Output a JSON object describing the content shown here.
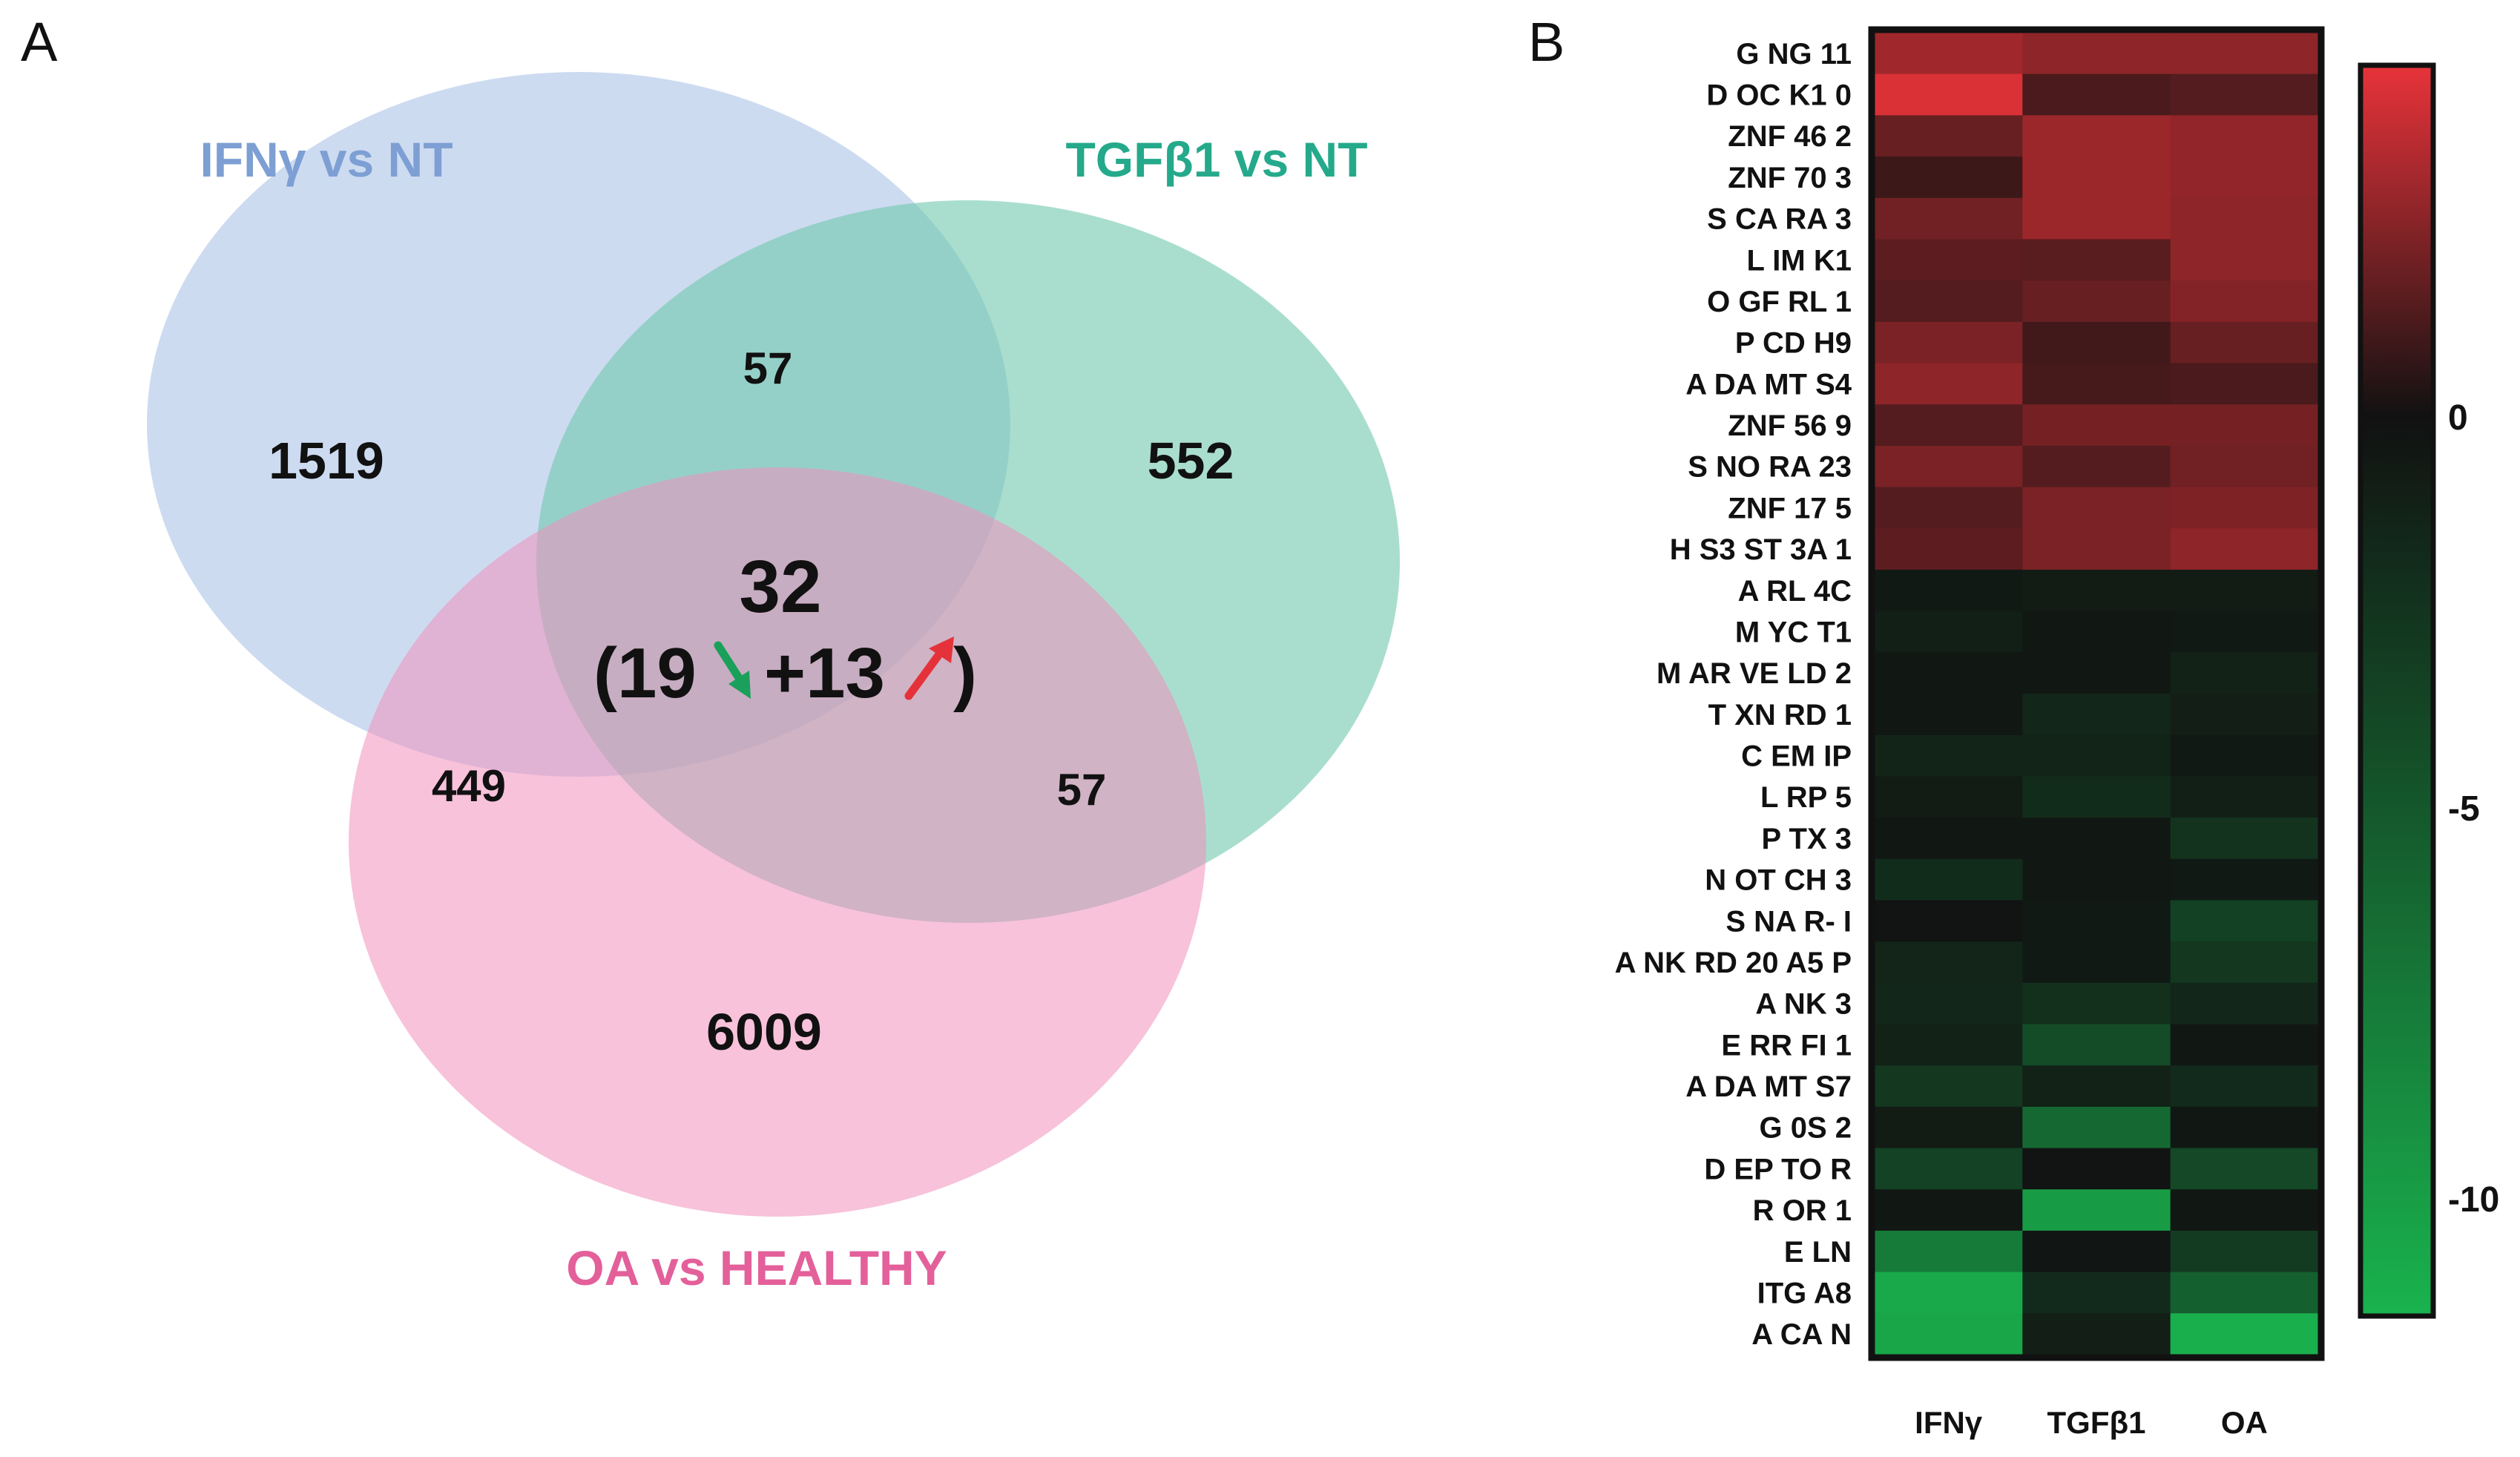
{
  "panels": {
    "a": "A",
    "b": "B"
  },
  "venn": {
    "sets": [
      {
        "name": "IFNγ vs NT",
        "color": "#7d9fd3",
        "fill": "#aec5e8"
      },
      {
        "name": "TGFβ1 vs NT",
        "color": "#25a98b",
        "fill": "#6fc8ad"
      },
      {
        "name": "OA vs HEALTHY",
        "color": "#e3609a",
        "fill": "#f08fbb"
      }
    ],
    "counts": {
      "ifn_only": "1519",
      "tgf_only": "552",
      "oa_only": "6009",
      "ifn_tgf": "57",
      "ifn_oa": "449",
      "tgf_oa": "57",
      "all": "32"
    },
    "breakdown": {
      "open": "(19",
      "plus": "+13",
      "close": ")"
    },
    "arrow_colors": {
      "down": "#1aa05a",
      "up": "#e5323a"
    }
  },
  "chart_data": {
    "type": "heatmap",
    "title": "",
    "columns": [
      "IFNγ",
      "TGFβ1",
      "OA"
    ],
    "rows": [
      "G NG 11",
      "D OC K1 0",
      "ZNF 46 2",
      "ZNF 70 3",
      "S CA RA 3",
      "L IM K1",
      "O GF RL 1",
      "P CD H9",
      "A DA MT S4",
      "ZNF 56 9",
      "S NO RA 23",
      "ZNF 17 5",
      "H S3 ST 3A 1",
      "A RL 4C",
      "M YC T1",
      "M AR VE LD 2",
      "T XN RD 1",
      "C EM IP",
      "L RP 5",
      "P TX 3",
      "N OT CH 3",
      "S NA R- I",
      "A NK RD 20 A5 P",
      "A NK 3",
      "E RR FI 1",
      "A DA MT S7",
      "G 0S 2",
      "D EP TO R",
      "R OR 1",
      "E LN",
      "ITG A8",
      "A CA N"
    ],
    "values": [
      [
        3.0,
        2.6,
        2.6
      ],
      [
        4.2,
        1.2,
        1.4
      ],
      [
        1.8,
        2.9,
        2.7
      ],
      [
        0.9,
        2.9,
        2.7
      ],
      [
        2.0,
        2.9,
        2.6
      ],
      [
        1.6,
        1.5,
        2.6
      ],
      [
        1.4,
        1.8,
        2.4
      ],
      [
        2.2,
        1.0,
        1.8
      ],
      [
        2.6,
        1.1,
        1.2
      ],
      [
        1.4,
        2.1,
        2.1
      ],
      [
        2.2,
        1.4,
        2.0
      ],
      [
        1.4,
        2.2,
        2.3
      ],
      [
        1.6,
        2.2,
        2.6
      ],
      [
        -0.6,
        -0.8,
        -0.8
      ],
      [
        -1.0,
        -0.5,
        -0.6
      ],
      [
        -0.5,
        -0.5,
        -1.2
      ],
      [
        -0.4,
        -1.5,
        -0.9
      ],
      [
        -1.3,
        -1.3,
        -0.6
      ],
      [
        -0.8,
        -1.9,
        -1.0
      ],
      [
        -0.4,
        -0.5,
        -2.4
      ],
      [
        -1.9,
        -0.5,
        -0.6
      ],
      [
        -0.2,
        -0.6,
        -3.4
      ],
      [
        -1.4,
        -0.6,
        -2.7
      ],
      [
        -1.5,
        -2.2,
        -1.5
      ],
      [
        -1.2,
        -4.2,
        -0.5
      ],
      [
        -2.7,
        -1.2,
        -1.8
      ],
      [
        -0.8,
        -6.2,
        -0.5
      ],
      [
        -3.5,
        -0.2,
        -3.9
      ],
      [
        -0.4,
        -9.8,
        -0.4
      ],
      [
        -7.5,
        -0.3,
        -3.0
      ],
      [
        -10.8,
        -1.8,
        -5.6
      ],
      [
        -10.6,
        -0.9,
        -11.2
      ]
    ],
    "colorbar": {
      "min": -11.5,
      "max": 4.5,
      "ticks": [
        "0",
        "-5",
        "-10"
      ],
      "tick_values": [
        0,
        -5,
        -10
      ],
      "low_color": "#19b34e",
      "mid_color": "#111111",
      "high_color": "#e8333a"
    }
  }
}
